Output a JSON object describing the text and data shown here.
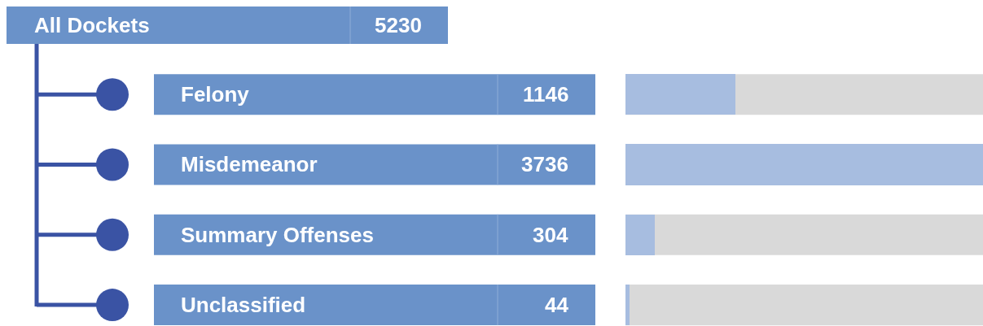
{
  "chart_data": {
    "type": "bar",
    "orientation": "horizontal",
    "title": "All Dockets",
    "annotations": [
      "5230"
    ],
    "categories": [
      "Felony",
      "Misdemeanor",
      "Summary Offenses",
      "Unclassified"
    ],
    "values": [
      1146,
      3736,
      304,
      44
    ],
    "color": "#a7bde0",
    "xlim": [
      0,
      3736
    ],
    "data_labels": true,
    "tick_labels": false
  }
}
